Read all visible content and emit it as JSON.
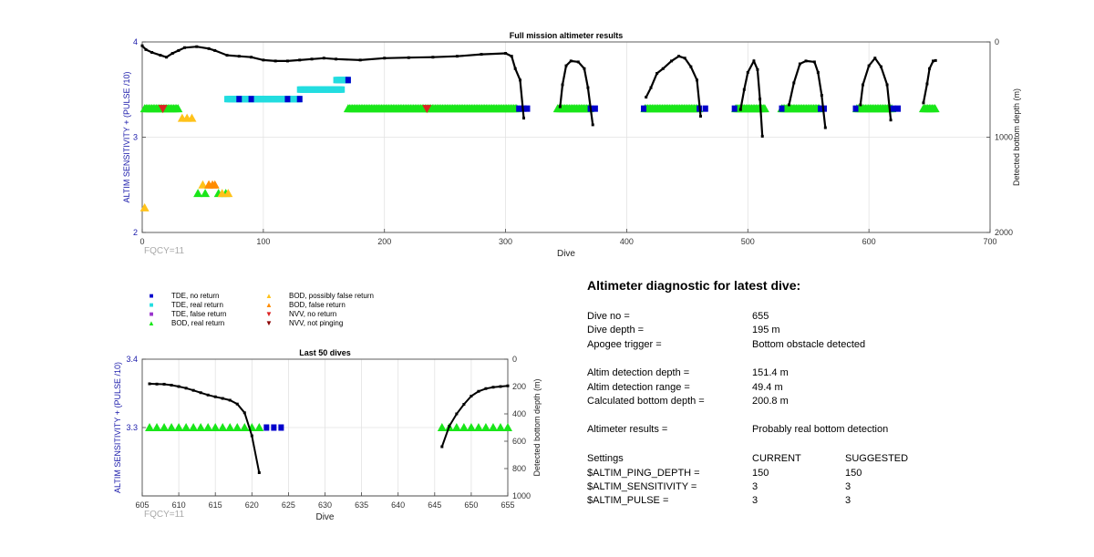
{
  "chart_data": [
    {
      "type": "scatter",
      "title": "Full mission altimeter results",
      "xlabel": "Dive",
      "ylabel": "ALTIM SENSITIVITY + (PULSE /10)",
      "ylabel_right": "Detected bottom depth (m)",
      "xlim": [
        0,
        700
      ],
      "ylim": [
        2,
        4
      ],
      "ylim_right_reversed": [
        0,
        2000
      ],
      "xticks": [
        "0",
        "100",
        "200",
        "300",
        "400",
        "500",
        "600",
        "700"
      ],
      "yticks": [
        "2",
        "3",
        "4"
      ],
      "yticks_right": [
        "0",
        "1000",
        "2000"
      ],
      "grid": true,
      "corner_label": "FQCY=11",
      "series": [
        {
          "key": "bod_real",
          "color": "#19e619",
          "segments": [
            [
              2,
              30
            ],
            [
              170,
              310
            ],
            [
              343,
              370
            ],
            [
              415,
              460
            ],
            [
              490,
              515
            ],
            [
              528,
              560
            ],
            [
              590,
              620
            ],
            [
              645,
              655
            ]
          ],
          "points": [
            [
              46,
              2.41
            ],
            [
              52,
              2.41
            ],
            [
              63,
              2.41
            ],
            [
              69,
              2.41
            ]
          ],
          "y": 3.3
        },
        {
          "key": "bod_possibly_false",
          "color": "#ffc21a",
          "points": [
            [
              2,
              2.26
            ],
            [
              33,
              3.2
            ],
            [
              37,
              3.2
            ],
            [
              41,
              3.2
            ],
            [
              50,
              2.5
            ],
            [
              55,
              2.5
            ],
            [
              66,
              2.41
            ],
            [
              71,
              2.41
            ]
          ]
        },
        {
          "key": "bod_false",
          "color": "#ff8c00",
          "points": [
            [
              55,
              2.5
            ],
            [
              58,
              2.5
            ],
            [
              60,
              2.5
            ]
          ]
        },
        {
          "key": "nvv_no_return",
          "color": "#dd2222",
          "points": [
            [
              17,
              3.3
            ],
            [
              235,
              3.3
            ]
          ]
        },
        {
          "key": "tde_no_return",
          "color": "#0000cc",
          "points": [
            [
              311,
              3.3
            ],
            [
              315,
              3.3
            ],
            [
              318,
              3.3
            ],
            [
              370,
              3.3
            ],
            [
              374,
              3.3
            ],
            [
              414,
              3.3
            ],
            [
              460,
              3.3
            ],
            [
              465,
              3.3
            ],
            [
              489,
              3.3
            ],
            [
              528,
              3.3
            ],
            [
              560,
              3.3
            ],
            [
              563,
              3.3
            ],
            [
              589,
              3.3
            ],
            [
              620,
              3.3
            ],
            [
              624,
              3.3
            ],
            [
              80,
              3.4
            ],
            [
              90,
              3.4
            ],
            [
              120,
              3.4
            ],
            [
              130,
              3.4
            ],
            [
              170,
              3.6
            ]
          ]
        },
        {
          "key": "tde_real",
          "color": "#22dde0",
          "segments": [
            [
              70,
              130
            ],
            [
              130,
              165
            ],
            [
              160,
              170
            ]
          ],
          "levels": [
            3.4,
            3.5,
            3.6
          ]
        }
      ],
      "depth_curves": [
        [
          [
            0,
            40
          ],
          [
            3,
            80
          ],
          [
            8,
            110
          ],
          [
            15,
            140
          ],
          [
            20,
            160
          ],
          [
            25,
            120
          ],
          [
            30,
            90
          ],
          [
            35,
            60
          ],
          [
            45,
            50
          ],
          [
            55,
            70
          ],
          [
            60,
            90
          ],
          [
            70,
            140
          ],
          [
            80,
            150
          ],
          [
            90,
            160
          ],
          [
            100,
            190
          ],
          [
            110,
            200
          ],
          [
            120,
            200
          ],
          [
            130,
            190
          ],
          [
            140,
            180
          ],
          [
            150,
            170
          ],
          [
            160,
            180
          ],
          [
            180,
            190
          ],
          [
            200,
            170
          ],
          [
            220,
            165
          ],
          [
            240,
            160
          ],
          [
            260,
            150
          ],
          [
            280,
            130
          ],
          [
            300,
            120
          ],
          [
            305,
            150
          ],
          [
            308,
            280
          ],
          [
            312,
            400
          ],
          [
            315,
            800
          ]
        ],
        [
          [
            345,
            680
          ],
          [
            347,
            450
          ],
          [
            350,
            250
          ],
          [
            354,
            200
          ],
          [
            360,
            210
          ],
          [
            365,
            280
          ],
          [
            368,
            480
          ],
          [
            372,
            870
          ]
        ],
        [
          [
            416,
            580
          ],
          [
            420,
            480
          ],
          [
            425,
            330
          ],
          [
            430,
            280
          ],
          [
            437,
            200
          ],
          [
            443,
            150
          ],
          [
            448,
            170
          ],
          [
            453,
            260
          ],
          [
            458,
            400
          ],
          [
            461,
            780
          ]
        ],
        [
          [
            494,
            710
          ],
          [
            497,
            500
          ],
          [
            500,
            320
          ],
          [
            505,
            200
          ],
          [
            508,
            290
          ],
          [
            510,
            600
          ],
          [
            512,
            990
          ]
        ],
        [
          [
            534,
            660
          ],
          [
            538,
            430
          ],
          [
            543,
            230
          ],
          [
            548,
            200
          ],
          [
            555,
            210
          ],
          [
            558,
            320
          ],
          [
            561,
            560
          ],
          [
            564,
            900
          ]
        ],
        [
          [
            593,
            660
          ],
          [
            595,
            450
          ],
          [
            600,
            250
          ],
          [
            605,
            170
          ],
          [
            610,
            260
          ],
          [
            615,
            450
          ],
          [
            618,
            820
          ]
        ],
        [
          [
            645,
            640
          ],
          [
            648,
            440
          ],
          [
            650,
            280
          ],
          [
            653,
            200
          ],
          [
            655,
            195
          ]
        ]
      ]
    },
    {
      "type": "scatter",
      "title": "Last 50 dives",
      "xlabel": "Dive",
      "ylabel": "ALTIM SENSITIVITY + (PULSE /10)",
      "ylabel_right": "Detected bottom depth (m)",
      "xlim": [
        605,
        655
      ],
      "ylim": [
        3.2,
        3.4
      ],
      "ylim_right_reversed": [
        0,
        1000
      ],
      "xticks": [
        "605",
        "610",
        "615",
        "620",
        "625",
        "630",
        "635",
        "640",
        "645",
        "650",
        "655"
      ],
      "yticks": [
        "3.3",
        "3.4"
      ],
      "yticks_right": [
        "0",
        "200",
        "400",
        "600",
        "800",
        "1000"
      ],
      "grid": true,
      "corner_label": "FQCY=11",
      "series": [
        {
          "key": "bod_real",
          "color": "#19e619",
          "points": [
            [
              606,
              3.3
            ],
            [
              607,
              3.3
            ],
            [
              608,
              3.3
            ],
            [
              609,
              3.3
            ],
            [
              610,
              3.3
            ],
            [
              611,
              3.3
            ],
            [
              612,
              3.3
            ],
            [
              613,
              3.3
            ],
            [
              614,
              3.3
            ],
            [
              615,
              3.3
            ],
            [
              616,
              3.3
            ],
            [
              617,
              3.3
            ],
            [
              618,
              3.3
            ],
            [
              619,
              3.3
            ],
            [
              620,
              3.3
            ],
            [
              621,
              3.3
            ],
            [
              646,
              3.3
            ],
            [
              647,
              3.3
            ],
            [
              648,
              3.3
            ],
            [
              649,
              3.3
            ],
            [
              650,
              3.3
            ],
            [
              651,
              3.3
            ],
            [
              652,
              3.3
            ],
            [
              653,
              3.3
            ],
            [
              654,
              3.3
            ],
            [
              655,
              3.3
            ]
          ]
        },
        {
          "key": "tde_no_return",
          "color": "#0000cc",
          "points": [
            [
              622,
              3.3
            ],
            [
              623,
              3.3
            ],
            [
              624,
              3.3
            ]
          ]
        }
      ],
      "depth_curves": [
        [
          [
            606,
            180
          ],
          [
            607,
            182
          ],
          [
            608,
            183
          ],
          [
            609,
            190
          ],
          [
            610,
            200
          ],
          [
            611,
            212
          ],
          [
            612,
            228
          ],
          [
            613,
            245
          ],
          [
            614,
            262
          ],
          [
            615,
            275
          ],
          [
            616,
            287
          ],
          [
            617,
            300
          ],
          [
            618,
            328
          ],
          [
            619,
            392
          ],
          [
            620,
            560
          ],
          [
            621,
            830
          ]
        ],
        [
          [
            646,
            640
          ],
          [
            647,
            490
          ],
          [
            648,
            400
          ],
          [
            649,
            330
          ],
          [
            650,
            270
          ],
          [
            651,
            235
          ],
          [
            652,
            215
          ],
          [
            653,
            205
          ],
          [
            654,
            200
          ],
          [
            655,
            195
          ]
        ]
      ]
    }
  ],
  "legend": [
    {
      "key": "tde_no_return",
      "label": "TDE, no return",
      "symbol": "■",
      "color": "#0000cc"
    },
    {
      "key": "tde_real",
      "label": "TDE, real return",
      "symbol": "■",
      "color": "#22dde0"
    },
    {
      "key": "tde_false",
      "label": "TDE, false return",
      "symbol": "■",
      "color": "#9933cc"
    },
    {
      "key": "bod_real",
      "label": "BOD, real return",
      "symbol": "▲",
      "color": "#19e619"
    },
    {
      "key": "bod_possibly_false",
      "label": "BOD, possibly false return",
      "symbol": "▲",
      "color": "#ffc21a"
    },
    {
      "key": "bod_false",
      "label": "BOD, false return",
      "symbol": "▲",
      "color": "#ff8c00"
    },
    {
      "key": "nvv_no_return",
      "label": "NVV, no return",
      "symbol": "▼",
      "color": "#dd2222"
    },
    {
      "key": "nvv_not_pinging",
      "label": "NVV, not pinging",
      "symbol": "▼",
      "color": "#8b0000"
    }
  ],
  "diagnostic": {
    "title": "Altimeter diagnostic for latest dive:",
    "rows": [
      {
        "label": "Dive no =",
        "value": "655"
      },
      {
        "label": "Dive depth =",
        "value": "195 m"
      },
      {
        "label": "Apogee trigger =",
        "value": "Bottom obstacle detected"
      },
      {
        "label": "Altim detection depth =",
        "value": "151.4 m"
      },
      {
        "label": "Altim detection range =",
        "value": "49.4 m"
      },
      {
        "label": "Calculated bottom depth =",
        "value": "200.8 m"
      },
      {
        "label": "Altimeter results =",
        "value": "Probably real bottom detection"
      }
    ],
    "settings": {
      "header": {
        "label": "Settings",
        "current": "CURRENT",
        "suggested": "SUGGESTED"
      },
      "rows": [
        {
          "label": "$ALTIM_PING_DEPTH =",
          "current": "150",
          "suggested": "150"
        },
        {
          "label": "$ALTIM_SENSITIVITY =",
          "current": "3",
          "suggested": "3"
        },
        {
          "label": "$ALTIM_PULSE =",
          "current": "3",
          "suggested": "3"
        }
      ]
    }
  }
}
